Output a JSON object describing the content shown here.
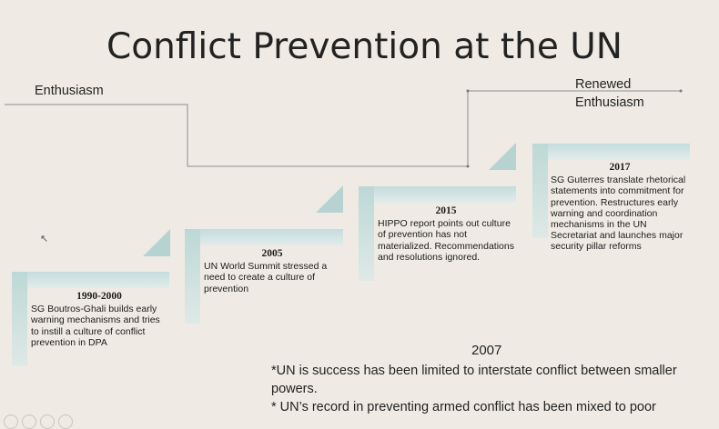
{
  "slide": {
    "title": "Conflict Prevention at the UN",
    "label_left": "Enthusiasm",
    "label_right_line1": "Renewed",
    "label_right_line2": "Enthusiasm"
  },
  "steps": [
    {
      "year": "1990-2000",
      "text": "SG Boutros-Ghali builds early warning mechanisms and tries to instill a culture of conflict prevention in DPA"
    },
    {
      "year": "2005",
      "text": "UN World Summit stressed a need to create a culture of prevention"
    },
    {
      "year": "2015",
      "text": "HIPPO report points out culture of prevention has not materialized. Recommendations and resolutions ignored."
    },
    {
      "year": "2017",
      "text": "SG Guterres translate rhetorical statements into commitment for prevention. Restructures early warning and coordination mechanisms in the UN Secretariat and launches major security pillar reforms"
    }
  ],
  "notes": {
    "year": "2007",
    "line1": "*UN is success has been limited to interstate conflict between smaller powers.",
    "line2": "* UN’s record in preventing armed conflict has been mixed to poor"
  },
  "colors": {
    "background": "#efebe4",
    "step_fill": "#c4dcdd",
    "line": "#8a8a8a"
  }
}
